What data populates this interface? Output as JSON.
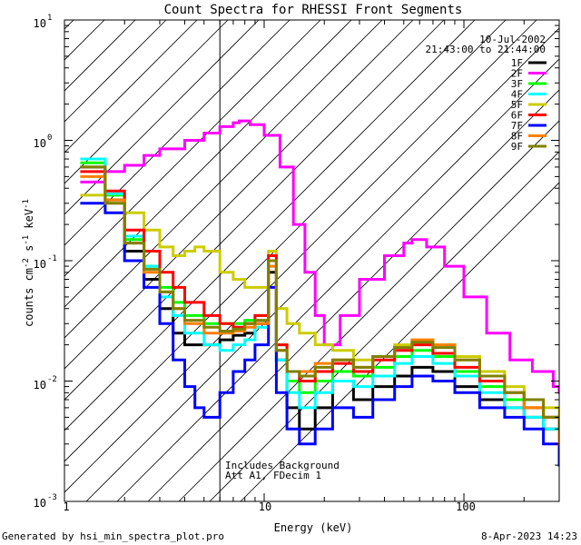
{
  "chart_data": {
    "type": "line",
    "title": "Count Spectra for RHESSI Front Segments",
    "xlabel": "Energy (keV)",
    "ylabel_main": "counts cm",
    "ylabel_exp1": "-2",
    "ylabel_mid1": " s",
    "ylabel_exp2": "-1",
    "ylabel_mid2": " keV",
    "ylabel_exp3": "-1",
    "x_scale": "log",
    "y_scale": "log",
    "xlim": [
      1,
      300
    ],
    "ylim": [
      0.001,
      10
    ],
    "x_ticks": [
      {
        "value": 1,
        "label": "1"
      },
      {
        "value": 10,
        "label": "10"
      },
      {
        "value": 100,
        "label": "100"
      }
    ],
    "y_ticks": [
      {
        "value": 0.001,
        "base": "10",
        "exp": "-3"
      },
      {
        "value": 0.01,
        "base": "10",
        "exp": "-2"
      },
      {
        "value": 0.1,
        "base": "10",
        "exp": "-1"
      },
      {
        "value": 1,
        "base": "10",
        "exp": "0"
      },
      {
        "value": 10,
        "base": "10",
        "exp": "1"
      }
    ],
    "date_label": "10-Jul-2002",
    "time_label": "21:43:00 to 21:44:00",
    "hatched_region_xmax": 6,
    "annotation_lines": [
      "Includes Background",
      "Att A1, FDecim 1"
    ],
    "footer_left": "Generated by hsi_min_spectra_plot.pro",
    "footer_right": "8-Apr-2023 14:23",
    "series": [
      {
        "name": "1F",
        "color": "#000000",
        "points": [
          [
            1.2,
            0.6
          ],
          [
            1.6,
            0.32
          ],
          [
            2.0,
            0.12
          ],
          [
            2.5,
            0.07
          ],
          [
            3.0,
            0.04
          ],
          [
            3.5,
            0.025
          ],
          [
            4.0,
            0.02
          ],
          [
            5.0,
            0.02
          ],
          [
            6.0,
            0.022
          ],
          [
            7.0,
            0.024
          ],
          [
            8.0,
            0.025
          ],
          [
            9.0,
            0.03
          ],
          [
            10.5,
            0.08
          ],
          [
            11.5,
            0.015
          ],
          [
            13,
            0.006
          ],
          [
            15,
            0.004
          ],
          [
            18,
            0.006
          ],
          [
            22,
            0.01
          ],
          [
            28,
            0.007
          ],
          [
            35,
            0.009
          ],
          [
            45,
            0.011
          ],
          [
            55,
            0.013
          ],
          [
            70,
            0.012
          ],
          [
            90,
            0.009
          ],
          [
            120,
            0.007
          ],
          [
            160,
            0.006
          ],
          [
            200,
            0.005
          ],
          [
            250,
            0.004
          ],
          [
            300,
            0.003
          ]
        ]
      },
      {
        "name": "2F",
        "color": "#ff00ff",
        "points": [
          [
            1.2,
            0.45
          ],
          [
            1.6,
            0.55
          ],
          [
            2.0,
            0.62
          ],
          [
            2.5,
            0.75
          ],
          [
            3.0,
            0.85
          ],
          [
            4.0,
            1.0
          ],
          [
            5.0,
            1.15
          ],
          [
            6.0,
            1.3
          ],
          [
            7.0,
            1.4
          ],
          [
            7.5,
            1.45
          ],
          [
            8.5,
            1.35
          ],
          [
            10,
            1.1
          ],
          [
            12,
            0.6
          ],
          [
            14,
            0.2
          ],
          [
            16,
            0.08
          ],
          [
            18,
            0.035
          ],
          [
            20,
            0.02
          ],
          [
            24,
            0.035
          ],
          [
            30,
            0.07
          ],
          [
            40,
            0.11
          ],
          [
            50,
            0.14
          ],
          [
            55,
            0.15
          ],
          [
            65,
            0.13
          ],
          [
            80,
            0.09
          ],
          [
            100,
            0.05
          ],
          [
            130,
            0.025
          ],
          [
            170,
            0.015
          ],
          [
            220,
            0.012
          ],
          [
            280,
            0.009
          ],
          [
            300,
            0.008
          ]
        ]
      },
      {
        "name": "3F",
        "color": "#00ff00",
        "points": [
          [
            1.2,
            0.65
          ],
          [
            1.6,
            0.35
          ],
          [
            2.0,
            0.15
          ],
          [
            2.5,
            0.09
          ],
          [
            3.0,
            0.06
          ],
          [
            3.5,
            0.045
          ],
          [
            4.0,
            0.035
          ],
          [
            5.0,
            0.03
          ],
          [
            6.0,
            0.03
          ],
          [
            7.0,
            0.03
          ],
          [
            8.0,
            0.032
          ],
          [
            9.0,
            0.035
          ],
          [
            10.5,
            0.1
          ],
          [
            11.5,
            0.02
          ],
          [
            13,
            0.01
          ],
          [
            15,
            0.008
          ],
          [
            18,
            0.01
          ],
          [
            22,
            0.012
          ],
          [
            28,
            0.011
          ],
          [
            35,
            0.013
          ],
          [
            45,
            0.016
          ],
          [
            55,
            0.018
          ],
          [
            70,
            0.016
          ],
          [
            90,
            0.012
          ],
          [
            120,
            0.009
          ],
          [
            160,
            0.007
          ],
          [
            200,
            0.006
          ],
          [
            250,
            0.005
          ],
          [
            300,
            0.003
          ]
        ]
      },
      {
        "name": "4F",
        "color": "#00ffff",
        "points": [
          [
            1.2,
            0.7
          ],
          [
            1.6,
            0.36
          ],
          [
            2.0,
            0.16
          ],
          [
            2.5,
            0.09
          ],
          [
            3.0,
            0.05
          ],
          [
            3.5,
            0.035
          ],
          [
            4.0,
            0.025
          ],
          [
            5.0,
            0.02
          ],
          [
            6.0,
            0.018
          ],
          [
            7.0,
            0.02
          ],
          [
            8.0,
            0.022
          ],
          [
            9.0,
            0.028
          ],
          [
            10.5,
            0.09
          ],
          [
            11.5,
            0.015
          ],
          [
            13,
            0.008
          ],
          [
            15,
            0.006
          ],
          [
            18,
            0.008
          ],
          [
            22,
            0.01
          ],
          [
            28,
            0.009
          ],
          [
            35,
            0.011
          ],
          [
            45,
            0.014
          ],
          [
            55,
            0.016
          ],
          [
            70,
            0.014
          ],
          [
            90,
            0.011
          ],
          [
            120,
            0.008
          ],
          [
            160,
            0.006
          ],
          [
            200,
            0.005
          ],
          [
            250,
            0.004
          ],
          [
            300,
            0.003
          ]
        ]
      },
      {
        "name": "5F",
        "color": "#cccc00",
        "points": [
          [
            1.2,
            0.35
          ],
          [
            1.6,
            0.3
          ],
          [
            2.0,
            0.25
          ],
          [
            2.5,
            0.18
          ],
          [
            3.0,
            0.13
          ],
          [
            3.5,
            0.11
          ],
          [
            4.0,
            0.12
          ],
          [
            4.5,
            0.13
          ],
          [
            5.0,
            0.12
          ],
          [
            6.0,
            0.08
          ],
          [
            7.0,
            0.07
          ],
          [
            8.0,
            0.06
          ],
          [
            9.0,
            0.06
          ],
          [
            10.5,
            0.12
          ],
          [
            11.5,
            0.04
          ],
          [
            13,
            0.03
          ],
          [
            15,
            0.025
          ],
          [
            18,
            0.02
          ],
          [
            22,
            0.018
          ],
          [
            28,
            0.015
          ],
          [
            35,
            0.016
          ],
          [
            45,
            0.02
          ],
          [
            55,
            0.022
          ],
          [
            70,
            0.02
          ],
          [
            90,
            0.016
          ],
          [
            120,
            0.012
          ],
          [
            160,
            0.009
          ],
          [
            200,
            0.007
          ],
          [
            250,
            0.006
          ],
          [
            300,
            0.005
          ]
        ]
      },
      {
        "name": "6F",
        "color": "#ff0000",
        "points": [
          [
            1.2,
            0.55
          ],
          [
            1.6,
            0.38
          ],
          [
            2.0,
            0.18
          ],
          [
            2.5,
            0.12
          ],
          [
            3.0,
            0.08
          ],
          [
            3.5,
            0.06
          ],
          [
            4.0,
            0.045
          ],
          [
            5.0,
            0.035
          ],
          [
            6.0,
            0.03
          ],
          [
            7.0,
            0.028
          ],
          [
            8.0,
            0.03
          ],
          [
            9.0,
            0.035
          ],
          [
            10.5,
            0.11
          ],
          [
            11.5,
            0.02
          ],
          [
            13,
            0.012
          ],
          [
            15,
            0.01
          ],
          [
            18,
            0.012
          ],
          [
            22,
            0.014
          ],
          [
            28,
            0.012
          ],
          [
            35,
            0.015
          ],
          [
            45,
            0.018
          ],
          [
            55,
            0.02
          ],
          [
            70,
            0.017
          ],
          [
            90,
            0.013
          ],
          [
            120,
            0.01
          ],
          [
            160,
            0.008
          ],
          [
            200,
            0.006
          ],
          [
            250,
            0.005
          ],
          [
            300,
            0.004
          ]
        ]
      },
      {
        "name": "7F",
        "color": "#0000ff",
        "points": [
          [
            1.2,
            0.3
          ],
          [
            1.6,
            0.25
          ],
          [
            2.0,
            0.1
          ],
          [
            2.5,
            0.06
          ],
          [
            3.0,
            0.03
          ],
          [
            3.5,
            0.015
          ],
          [
            4.0,
            0.009
          ],
          [
            4.5,
            0.006
          ],
          [
            5.0,
            0.005
          ],
          [
            6.0,
            0.008
          ],
          [
            7.0,
            0.012
          ],
          [
            8.0,
            0.015
          ],
          [
            9.0,
            0.02
          ],
          [
            10.5,
            0.06
          ],
          [
            11.5,
            0.008
          ],
          [
            13,
            0.004
          ],
          [
            15,
            0.003
          ],
          [
            18,
            0.004
          ],
          [
            22,
            0.006
          ],
          [
            28,
            0.005
          ],
          [
            35,
            0.007
          ],
          [
            45,
            0.009
          ],
          [
            55,
            0.011
          ],
          [
            70,
            0.01
          ],
          [
            90,
            0.008
          ],
          [
            120,
            0.006
          ],
          [
            160,
            0.005
          ],
          [
            200,
            0.004
          ],
          [
            250,
            0.003
          ],
          [
            300,
            0.002
          ]
        ]
      },
      {
        "name": "8F",
        "color": "#ff7f00",
        "points": [
          [
            1.2,
            0.5
          ],
          [
            1.6,
            0.32
          ],
          [
            2.0,
            0.14
          ],
          [
            2.5,
            0.08
          ],
          [
            3.0,
            0.055
          ],
          [
            3.5,
            0.04
          ],
          [
            4.0,
            0.03
          ],
          [
            5.0,
            0.025
          ],
          [
            6.0,
            0.025
          ],
          [
            7.0,
            0.026
          ],
          [
            8.0,
            0.028
          ],
          [
            9.0,
            0.03
          ],
          [
            10.5,
            0.09
          ],
          [
            11.5,
            0.018
          ],
          [
            13,
            0.012
          ],
          [
            15,
            0.012
          ],
          [
            18,
            0.014
          ],
          [
            22,
            0.015
          ],
          [
            28,
            0.013
          ],
          [
            35,
            0.016
          ],
          [
            45,
            0.019
          ],
          [
            55,
            0.022
          ],
          [
            70,
            0.02
          ],
          [
            90,
            0.015
          ],
          [
            120,
            0.011
          ],
          [
            160,
            0.008
          ],
          [
            200,
            0.006
          ],
          [
            250,
            0.005
          ],
          [
            300,
            0.003
          ]
        ]
      },
      {
        "name": "9F",
        "color": "#808000",
        "points": [
          [
            1.2,
            0.6
          ],
          [
            1.6,
            0.3
          ],
          [
            2.0,
            0.14
          ],
          [
            2.5,
            0.085
          ],
          [
            3.0,
            0.055
          ],
          [
            3.5,
            0.04
          ],
          [
            4.0,
            0.032
          ],
          [
            5.0,
            0.028
          ],
          [
            6.0,
            0.026
          ],
          [
            7.0,
            0.027
          ],
          [
            8.0,
            0.03
          ],
          [
            9.0,
            0.032
          ],
          [
            10.5,
            0.1
          ],
          [
            11.5,
            0.018
          ],
          [
            13,
            0.012
          ],
          [
            15,
            0.011
          ],
          [
            18,
            0.013
          ],
          [
            22,
            0.015
          ],
          [
            28,
            0.013
          ],
          [
            35,
            0.016
          ],
          [
            45,
            0.019
          ],
          [
            55,
            0.021
          ],
          [
            70,
            0.019
          ],
          [
            90,
            0.015
          ],
          [
            120,
            0.011
          ],
          [
            160,
            0.008
          ],
          [
            200,
            0.007
          ],
          [
            250,
            0.005
          ],
          [
            300,
            0.004
          ]
        ]
      }
    ]
  }
}
